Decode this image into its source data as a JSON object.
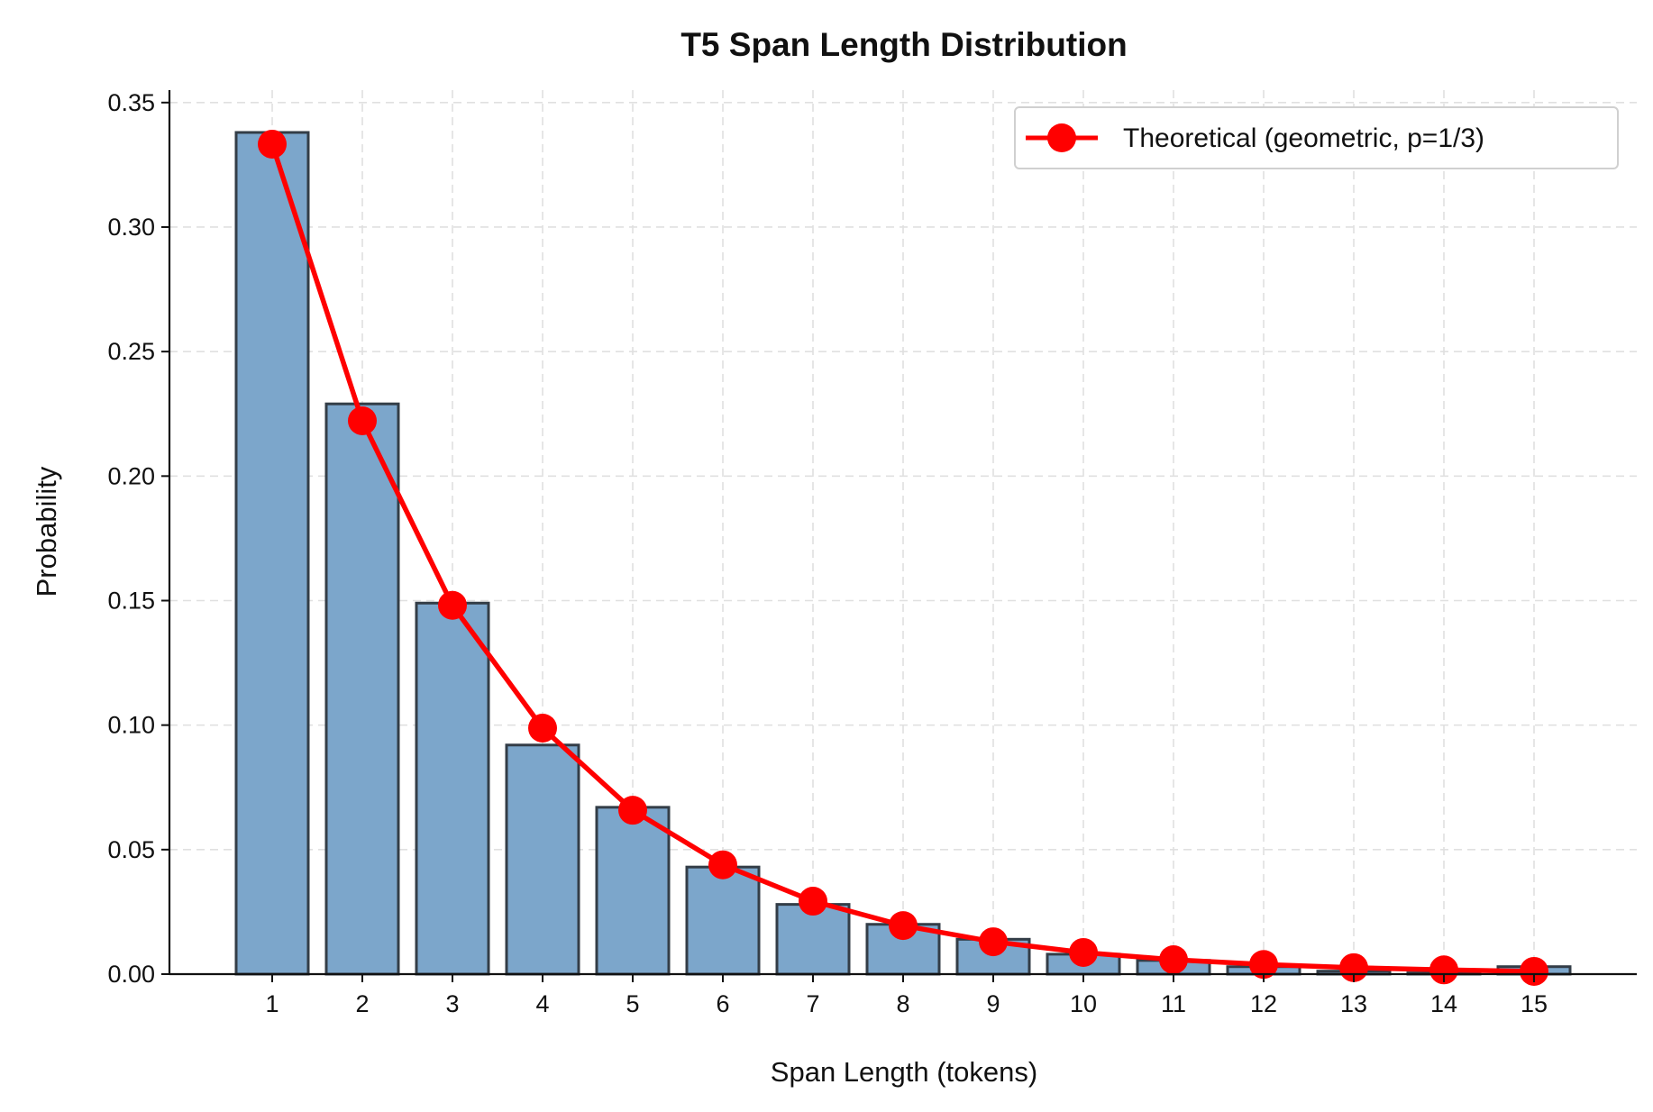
{
  "chart_data": {
    "type": "bar",
    "title": "T5 Span Length Distribution",
    "xlabel": "Span Length (tokens)",
    "ylabel": "Probability",
    "categories": [
      1,
      2,
      3,
      4,
      5,
      6,
      7,
      8,
      9,
      10,
      11,
      12,
      13,
      14,
      15
    ],
    "xlim": [
      -0.14,
      16.14
    ],
    "ylim": [
      0,
      0.355
    ],
    "yticks": [
      0.0,
      0.05,
      0.1,
      0.15,
      0.2,
      0.25,
      0.3,
      0.35
    ],
    "grid": true,
    "legend_placement": "top-right",
    "series": [
      {
        "type": "bar",
        "values": [
          0.338,
          0.229,
          0.149,
          0.092,
          0.067,
          0.043,
          0.028,
          0.02,
          0.014,
          0.008,
          0.0055,
          0.003,
          0.0012,
          0.0005,
          0.003
        ],
        "color": "#7ca6cb",
        "edgecolor": "#333d47"
      },
      {
        "type": "line",
        "name": "Theoretical (geometric, p=1/3)",
        "values": [
          0.3333,
          0.2222,
          0.1481,
          0.0988,
          0.0658,
          0.0439,
          0.0293,
          0.0195,
          0.013,
          0.0087,
          0.0058,
          0.0039,
          0.0026,
          0.0017,
          0.0011
        ],
        "color": "#ff0000",
        "marker": "circle"
      }
    ]
  }
}
